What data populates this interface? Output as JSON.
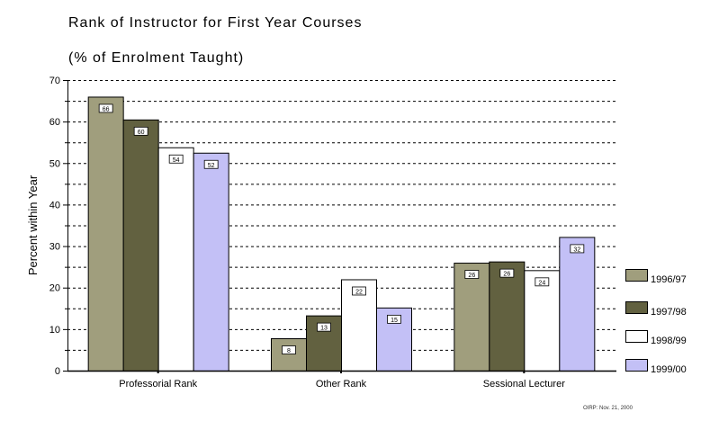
{
  "chart_data": {
    "type": "bar",
    "title": "Rank of Instructor for First Year Courses",
    "subtitle": "(% of Enrolment Taught)",
    "ylabel": "Percent within Year",
    "xlabel": "",
    "ylim": [
      0,
      70
    ],
    "yticks": [
      0,
      10,
      20,
      30,
      40,
      50,
      60,
      70
    ],
    "grid": true,
    "legend_position": "bottom-right",
    "categories": [
      "Professorial Rank",
      "Other Rank",
      "Sessional Lecturer"
    ],
    "series": [
      {
        "name": "1996/97",
        "color": "#a09e7d",
        "values": [
          66.0,
          7.8,
          26.0
        ],
        "labels": [
          "66",
          "8",
          "26"
        ]
      },
      {
        "name": "1997/98",
        "color": "#626140",
        "values": [
          60.5,
          13.3,
          26.3
        ],
        "labels": [
          "60",
          "13",
          "26"
        ]
      },
      {
        "name": "1998/99",
        "color": "#ffffff",
        "values": [
          53.8,
          22.0,
          24.2
        ],
        "labels": [
          "54",
          "22",
          "24"
        ]
      },
      {
        "name": "1999/00",
        "color": "#c3c0f6",
        "values": [
          52.5,
          15.2,
          32.2
        ],
        "labels": [
          "52",
          "15",
          "32"
        ]
      }
    ]
  },
  "footer": {
    "credit": "OIRP: Nov. 21, 2000"
  }
}
